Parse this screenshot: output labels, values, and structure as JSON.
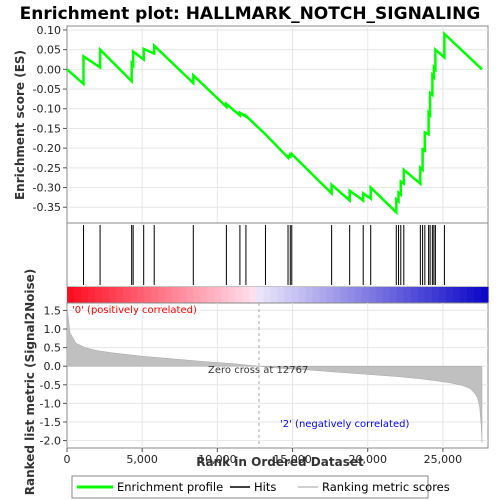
{
  "chart_data": {
    "type": "line",
    "title": "Enrichment plot: HALLMARK_NOTCH_SIGNALING",
    "xlabel": "Rank in Ordered Dataset",
    "ylabel_top": "Enrichment score (ES)",
    "ylabel_bottom": "Ranked list metric (Signal2Noise)",
    "xlim": [
      0,
      28000
    ],
    "es_ylim": [
      -0.39,
      0.11
    ],
    "metric_ylim": [
      -2.2,
      1.7
    ],
    "x_ticks": [
      0,
      5000,
      10000,
      15000,
      20000,
      25000
    ],
    "x_tick_labels": [
      "0",
      "5,000",
      "10,000",
      "15,000",
      "20,000",
      "25,000"
    ],
    "es_ticks": [
      0.1,
      0.05,
      0.0,
      -0.05,
      -0.1,
      -0.15,
      -0.2,
      -0.25,
      -0.3,
      -0.35
    ],
    "es_tick_labels": [
      "0.10",
      "0.05",
      "0.00",
      "-0.05",
      "-0.10",
      "-0.15",
      "-0.20",
      "-0.25",
      "-0.30",
      "-0.35"
    ],
    "metric_ticks": [
      1.5,
      1.0,
      0.5,
      0.0,
      -0.5,
      -1.0,
      -1.5,
      -2.0
    ],
    "metric_tick_labels": [
      "1.5",
      "1.0",
      "0.5",
      "0.0",
      "-0.5",
      "-1.0",
      "-1.5",
      "-2.0"
    ],
    "hits": [
      1100,
      2200,
      4300,
      4400,
      5100,
      5800,
      8400,
      10600,
      11500,
      11900,
      13200,
      14700,
      14850,
      14950,
      17600,
      18800,
      19700,
      20200,
      21900,
      22050,
      22200,
      22400,
      23500,
      23650,
      23800,
      24050,
      24150,
      24300,
      24400,
      24500,
      25100
    ],
    "es_series": {
      "name": "Enrichment profile",
      "x": [
        0,
        1100,
        1100,
        2200,
        2200,
        4300,
        4300,
        4400,
        4400,
        5100,
        5100,
        5800,
        5800,
        8400,
        8400,
        10600,
        10600,
        11500,
        11500,
        11900,
        11900,
        13200,
        13200,
        14700,
        14700,
        14850,
        14850,
        14950,
        14950,
        17600,
        17600,
        18800,
        18800,
        19700,
        19700,
        20200,
        20200,
        21900,
        21900,
        22050,
        22050,
        22200,
        22200,
        22400,
        22400,
        23500,
        23500,
        23650,
        23650,
        23800,
        23800,
        24050,
        24050,
        24150,
        24150,
        24300,
        24300,
        24400,
        24400,
        24500,
        24500,
        25100,
        25100,
        27600
      ],
      "y": [
        0.0,
        -0.037,
        0.033,
        0.005,
        0.05,
        -0.03,
        0.015,
        0.01,
        0.045,
        0.025,
        0.052,
        0.04,
        0.06,
        -0.035,
        -0.015,
        -0.095,
        -0.088,
        -0.117,
        -0.11,
        -0.12,
        -0.118,
        -0.165,
        -0.165,
        -0.224,
        -0.22,
        -0.222,
        -0.216,
        -0.218,
        -0.215,
        -0.315,
        -0.293,
        -0.333,
        -0.308,
        -0.333,
        -0.315,
        -0.328,
        -0.3,
        -0.363,
        -0.33,
        -0.335,
        -0.313,
        -0.318,
        -0.285,
        -0.29,
        -0.255,
        -0.29,
        -0.25,
        -0.255,
        -0.2,
        -0.21,
        -0.16,
        -0.165,
        -0.11,
        -0.115,
        -0.06,
        -0.065,
        -0.015,
        -0.02,
        0.005,
        0.0,
        0.05,
        0.03,
        0.09,
        0.0
      ]
    },
    "metric_series": {
      "x": [
        0,
        200,
        600,
        1200,
        2000,
        3000,
        5000,
        7000,
        9000,
        11000,
        12767,
        14000,
        16000,
        18000,
        20000,
        22000,
        23500,
        24500,
        25500,
        26300,
        26800,
        27100,
        27300,
        27450,
        27550,
        27600
      ],
      "y": [
        1.62,
        0.9,
        0.62,
        0.5,
        0.42,
        0.36,
        0.27,
        0.2,
        0.13,
        0.07,
        0.0,
        -0.05,
        -0.1,
        -0.16,
        -0.22,
        -0.28,
        -0.34,
        -0.39,
        -0.45,
        -0.52,
        -0.6,
        -0.72,
        -0.85,
        -1.1,
        -1.6,
        -2.05
      ]
    },
    "zero_cross": 12767,
    "annotations": {
      "positive": "'0' (positively correlated)",
      "negative": "'2' (negatively correlated)",
      "zero_cross": "Zero cross at 12767"
    },
    "legend": {
      "placement": "bottom",
      "items": [
        "Enrichment profile",
        "Hits",
        "Ranking metric scores"
      ]
    },
    "colors": {
      "es_line": "#00ff00",
      "hit_line": "#000000",
      "metric_fill": "#c0c0c0",
      "positive_label": "#ff0000",
      "negative_label": "#0000ff"
    }
  }
}
